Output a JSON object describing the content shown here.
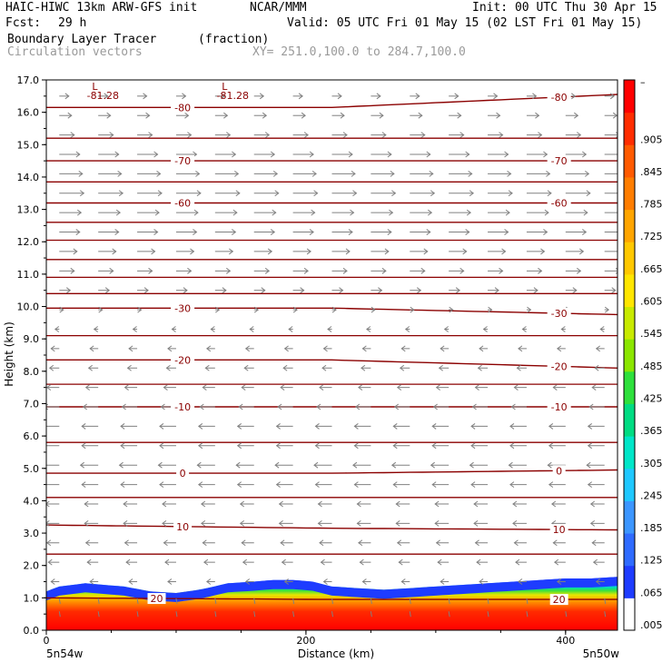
{
  "header": {
    "model_title": "HAIC-HIWC 13km ARW-GFS init",
    "org": "NCAR/MMM",
    "init": "Init: 00 UTC Thu 30 Apr 15",
    "fcst_label": "Fcst:",
    "fcst_value": "29 h",
    "valid": "Valid: 05 UTC Fri 01 May 15 (02 LST Fri 01 May 15)",
    "field": "Boundary Layer Tracer",
    "field_units": "(fraction)",
    "vectors_label": "Circulation vectors",
    "xy_range": "XY= 251.0,100.0 to 284.7,100.0"
  },
  "chart_data": {
    "type": "heatmap",
    "title": "Boundary Layer Tracer (fraction)",
    "xlabel": "Distance (km)",
    "ylabel": "Height (km)",
    "xlim": [
      0,
      440
    ],
    "ylim": [
      0.0,
      17.0
    ],
    "x_ticks": [
      "0",
      "200",
      "400"
    ],
    "y_ticks": [
      "0.0",
      "1.0",
      "2.0",
      "3.0",
      "4.0",
      "5.0",
      "6.0",
      "7.0",
      "8.0",
      "9.0",
      "10.0",
      "11.0",
      "12.0",
      "13.0",
      "14.0",
      "15.0",
      "16.0",
      "17.0"
    ],
    "x_endpoints": {
      "left": "5n54w",
      "right": "5n50w"
    },
    "colorbar": {
      "labels": [
        ".005",
        ".065",
        ".125",
        ".185",
        ".245",
        ".305",
        ".365",
        ".425",
        ".485",
        ".545",
        ".605",
        ".665",
        ".725",
        ".785",
        ".845",
        ".905"
      ],
      "top_label": "–",
      "colors": [
        "#ffffff",
        "#1e3cff",
        "#2f6bff",
        "#3c96ff",
        "#1fc8ff",
        "#00e6c8",
        "#00dc82",
        "#2ee03c",
        "#8be600",
        "#c8ea00",
        "#ffe600",
        "#ffc800",
        "#ffa500",
        "#ff7d00",
        "#ff5a00",
        "#ff2d00",
        "#ff0000"
      ]
    },
    "temperature_contours": {
      "units": "°C",
      "color": "#8b0000",
      "levels": [
        {
          "label": "-80",
          "heights_km": [
            16.15,
            16.15,
            16.55
          ]
        },
        {
          "label": "-70",
          "heights_km": [
            14.5,
            14.5,
            14.5
          ]
        },
        {
          "label": "-60",
          "heights_km": [
            13.2,
            13.2,
            13.2
          ]
        },
        {
          "label": "-30",
          "heights_km": [
            9.95,
            9.95,
            9.75
          ]
        },
        {
          "label": "-20",
          "heights_km": [
            8.35,
            8.35,
            8.1
          ]
        },
        {
          "label": "-10",
          "heights_km": [
            6.9,
            6.9,
            6.9
          ]
        },
        {
          "label": "0",
          "heights_km": [
            4.85,
            4.85,
            4.95
          ]
        },
        {
          "label": "10",
          "heights_km": [
            3.25,
            3.15,
            3.1
          ]
        },
        {
          "label": "20",
          "heights_km": [
            1.0,
            0.95,
            0.95
          ]
        }
      ],
      "unlabeled_heights_km": [
        15.2,
        13.85,
        12.6,
        12.05,
        11.45,
        10.9,
        10.4,
        9.1,
        7.6,
        5.8,
        4.1,
        2.35
      ],
      "label_positions_km": [
        {
          "label": "-80",
          "x": [
            105,
            395
          ]
        },
        {
          "label": "-70",
          "x": [
            105,
            395
          ]
        },
        {
          "label": "-60",
          "x": [
            105,
            395
          ]
        },
        {
          "label": "-30",
          "x": [
            105,
            395
          ]
        },
        {
          "label": "-20",
          "x": [
            105,
            395
          ]
        },
        {
          "label": "-10",
          "x": [
            105,
            395
          ]
        },
        {
          "label": "0",
          "x": [
            105,
            395
          ]
        },
        {
          "label": "10",
          "x": [
            105,
            395
          ]
        },
        {
          "label": "20",
          "x": [
            85,
            395
          ]
        }
      ]
    },
    "low_markers": [
      {
        "symbol": "L",
        "value": "-81.28",
        "x_km": 45
      },
      {
        "symbol": "L",
        "value": "-81.28",
        "x_km": 145
      }
    ],
    "tracer_boundary_top_km": {
      "x": [
        0,
        10,
        30,
        60,
        80,
        100,
        118,
        140,
        160,
        175,
        190,
        205,
        220,
        240,
        260,
        280,
        300,
        320,
        340,
        360,
        380,
        400,
        420,
        440
      ],
      "top": [
        1.2,
        1.35,
        1.45,
        1.35,
        1.2,
        1.15,
        1.25,
        1.45,
        1.5,
        1.55,
        1.55,
        1.5,
        1.35,
        1.3,
        1.25,
        1.3,
        1.35,
        1.4,
        1.45,
        1.5,
        1.55,
        1.6,
        1.6,
        1.65
      ]
    },
    "vectors": {
      "rows_km": [
        16.5,
        15.9,
        15.3,
        14.7,
        14.1,
        13.5,
        12.9,
        12.3,
        11.7,
        11.1,
        10.5,
        9.9,
        9.3,
        8.7,
        8.1,
        7.5,
        6.9,
        6.3,
        5.7,
        5.1,
        4.5,
        3.9,
        3.3,
        2.7,
        2.1,
        1.5,
        0.9,
        0.5
      ],
      "u_relative": [
        0.35,
        0.45,
        0.55,
        0.75,
        0.85,
        0.9,
        0.8,
        0.75,
        0.65,
        0.55,
        0.4,
        0.15,
        -0.15,
        -0.3,
        -0.35,
        -0.45,
        -0.55,
        -0.6,
        -0.6,
        -0.65,
        -0.6,
        -0.5,
        -0.5,
        -0.45,
        -0.4,
        -0.3,
        0.0,
        0.0
      ],
      "x_spacing_km": 30,
      "color": "#808080"
    }
  }
}
